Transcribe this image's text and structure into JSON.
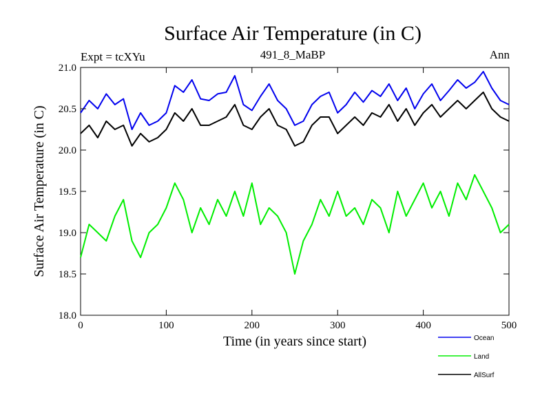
{
  "chart_data": {
    "type": "line",
    "title": "Surface Air Temperature (in C)",
    "subtitle_left": "Expt = tcXYu",
    "subtitle_center": "491_8_MaBP",
    "subtitle_right": "Ann",
    "xlabel": "Time (in years since start)",
    "ylabel": "Surface Air Temperature (in C)",
    "xlim": [
      0,
      500
    ],
    "ylim": [
      18.0,
      21.0
    ],
    "x_ticks": [
      0,
      100,
      200,
      300,
      400,
      500
    ],
    "y_ticks": [
      18.0,
      18.5,
      19.0,
      19.5,
      20.0,
      20.5,
      21.0
    ],
    "x_tick_labels": [
      "0",
      "100",
      "200",
      "300",
      "400",
      "500"
    ],
    "y_tick_labels": [
      "18.0",
      "18.5",
      "19.0",
      "19.5",
      "20.0",
      "20.5",
      "21.0"
    ],
    "grid": false,
    "legend_position": "below-right",
    "series": [
      {
        "name": "Ocean",
        "color": "#0000ee",
        "x": [
          0,
          10,
          20,
          30,
          40,
          50,
          60,
          70,
          80,
          90,
          100,
          110,
          120,
          130,
          140,
          150,
          160,
          170,
          180,
          190,
          200,
          210,
          220,
          230,
          240,
          250,
          260,
          270,
          280,
          290,
          300,
          310,
          320,
          330,
          340,
          350,
          360,
          370,
          380,
          390,
          400,
          410,
          420,
          430,
          440,
          450,
          460,
          470,
          480,
          490,
          500
        ],
        "values": [
          20.45,
          20.6,
          20.5,
          20.68,
          20.55,
          20.62,
          20.25,
          20.45,
          20.3,
          20.35,
          20.45,
          20.78,
          20.7,
          20.85,
          20.62,
          20.6,
          20.68,
          20.7,
          20.9,
          20.55,
          20.48,
          20.65,
          20.8,
          20.6,
          20.5,
          20.3,
          20.35,
          20.55,
          20.65,
          20.7,
          20.45,
          20.55,
          20.7,
          20.58,
          20.72,
          20.65,
          20.8,
          20.6,
          20.75,
          20.5,
          20.68,
          20.8,
          20.6,
          20.72,
          20.85,
          20.75,
          20.82,
          20.95,
          20.75,
          20.6,
          20.55
        ]
      },
      {
        "name": "Land",
        "color": "#00ee00",
        "x": [
          0,
          10,
          20,
          30,
          40,
          50,
          60,
          70,
          80,
          90,
          100,
          110,
          120,
          130,
          140,
          150,
          160,
          170,
          180,
          190,
          200,
          210,
          220,
          230,
          240,
          250,
          260,
          270,
          280,
          290,
          300,
          310,
          320,
          330,
          340,
          350,
          360,
          370,
          380,
          390,
          400,
          410,
          420,
          430,
          440,
          450,
          460,
          470,
          480,
          490,
          500
        ],
        "values": [
          18.7,
          19.1,
          19.0,
          18.9,
          19.2,
          19.4,
          18.9,
          18.7,
          19.0,
          19.1,
          19.3,
          19.6,
          19.4,
          19.0,
          19.3,
          19.1,
          19.4,
          19.2,
          19.5,
          19.2,
          19.6,
          19.1,
          19.3,
          19.2,
          19.0,
          18.5,
          18.9,
          19.1,
          19.4,
          19.2,
          19.5,
          19.2,
          19.3,
          19.1,
          19.4,
          19.3,
          19.0,
          19.5,
          19.2,
          19.4,
          19.6,
          19.3,
          19.5,
          19.2,
          19.6,
          19.4,
          19.7,
          19.5,
          19.3,
          19.0,
          19.1
        ]
      },
      {
        "name": "AllSurf",
        "color": "#000000",
        "x": [
          0,
          10,
          20,
          30,
          40,
          50,
          60,
          70,
          80,
          90,
          100,
          110,
          120,
          130,
          140,
          150,
          160,
          170,
          180,
          190,
          200,
          210,
          220,
          230,
          240,
          250,
          260,
          270,
          280,
          290,
          300,
          310,
          320,
          330,
          340,
          350,
          360,
          370,
          380,
          390,
          400,
          410,
          420,
          430,
          440,
          450,
          460,
          470,
          480,
          490,
          500
        ],
        "values": [
          20.2,
          20.3,
          20.15,
          20.35,
          20.25,
          20.3,
          20.05,
          20.2,
          20.1,
          20.15,
          20.25,
          20.45,
          20.35,
          20.5,
          20.3,
          20.3,
          20.35,
          20.4,
          20.55,
          20.3,
          20.25,
          20.4,
          20.5,
          20.3,
          20.25,
          20.05,
          20.1,
          20.3,
          20.4,
          20.4,
          20.2,
          20.3,
          20.4,
          20.3,
          20.45,
          20.4,
          20.55,
          20.35,
          20.5,
          20.3,
          20.45,
          20.55,
          20.4,
          20.5,
          20.6,
          20.5,
          20.6,
          20.7,
          20.5,
          20.4,
          20.35
        ]
      }
    ]
  }
}
